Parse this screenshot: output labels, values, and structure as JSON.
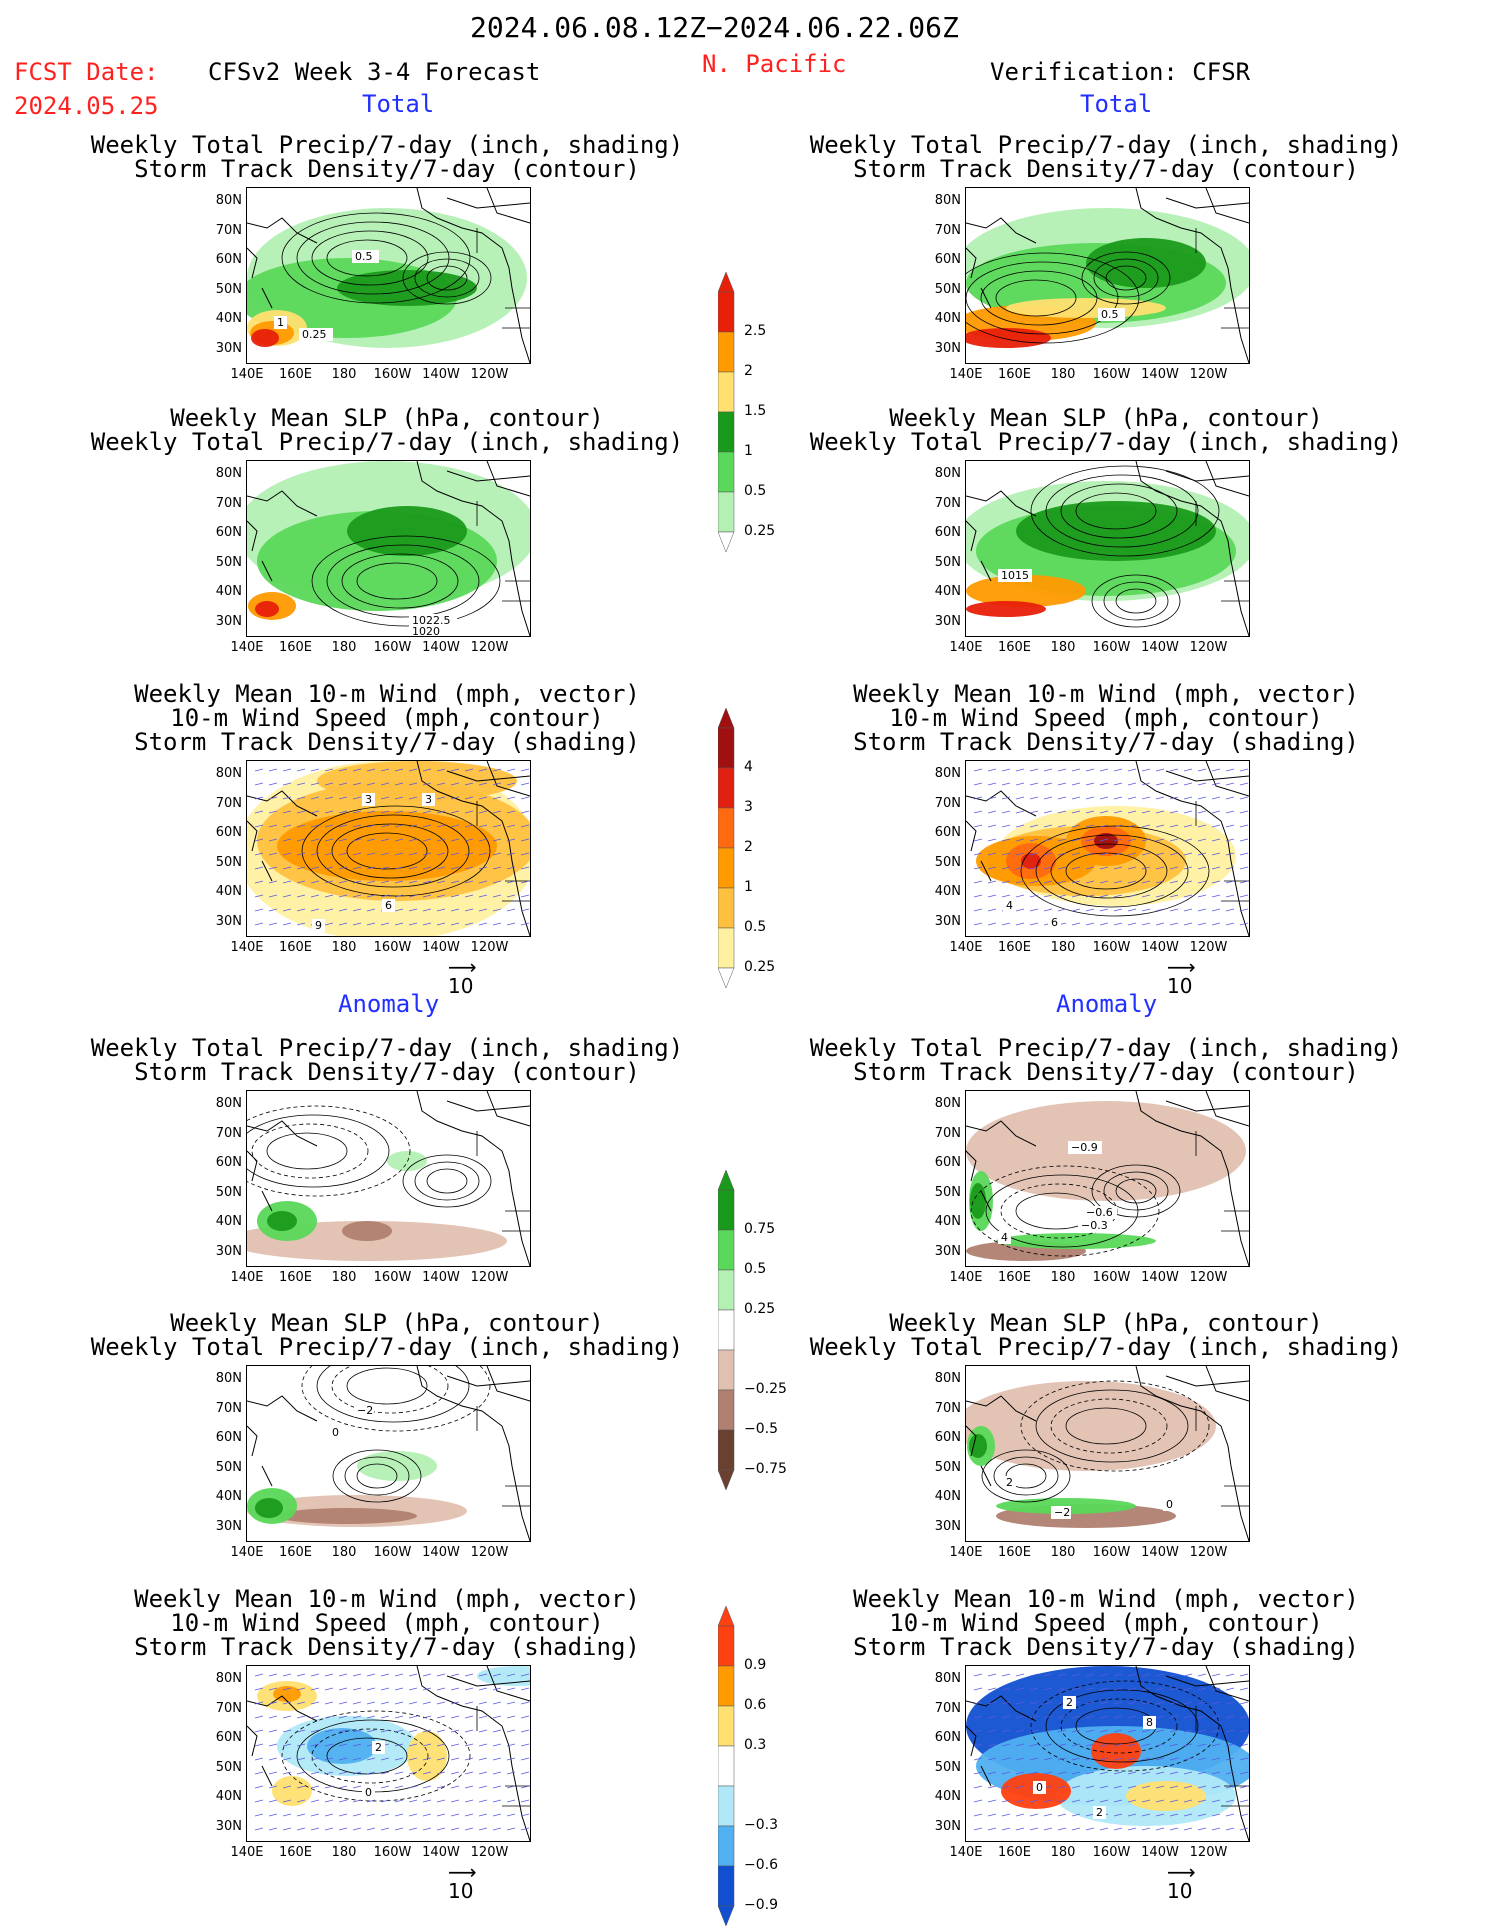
{
  "header": {
    "date_range": "2024.06.08.12Z−2024.06.22.06Z",
    "fcst_label": "FCST Date:",
    "fcst_date": "2024.05.25",
    "left_title": "CFSv2 Week 3-4 Forecast",
    "region": "N. Pacific",
    "right_title": "Verification: CFSR"
  },
  "sections": {
    "total": "Total",
    "anomaly": "Anomaly"
  },
  "panel_titles": {
    "precip_storm": [
      "Weekly Total Precip/7-day (inch, shading)",
      "Storm Track Density/7-day (contour)"
    ],
    "slp_precip": [
      "Weekly Mean SLP (hPa, contour)",
      "Weekly Total Precip/7-day (inch, shading)"
    ],
    "wind_storm": [
      "Weekly Mean 10-m Wind (mph, vector)",
      "10-m Wind Speed (mph, contour)",
      "Storm Track Density/7-day (shading)"
    ]
  },
  "axes": {
    "lat": [
      "80N",
      "70N",
      "60N",
      "50N",
      "40N",
      "30N"
    ],
    "lon": [
      "140E",
      "160E",
      "180",
      "160W",
      "140W",
      "120W"
    ]
  },
  "vector_ref": "10",
  "colorbars": {
    "precip_total": {
      "labels": [
        "2.5",
        "2",
        "1.5",
        "1",
        "0.5",
        "0.25"
      ],
      "colors": [
        "#e8200a",
        "#ff9a00",
        "#ffe070",
        "#1a9a1a",
        "#5ad85a",
        "#b4f0b4"
      ]
    },
    "storm_total": {
      "labels": [
        "4",
        "3",
        "2",
        "1",
        "0.5",
        "0.25"
      ],
      "colors": [
        "#a01010",
        "#e02010",
        "#ff6a10",
        "#ff9a00",
        "#ffc040",
        "#fff0a0"
      ]
    },
    "precip_anom": {
      "labels": [
        "0.75",
        "0.5",
        "0.25",
        "−0.25",
        "−0.5",
        "−0.75"
      ],
      "colors": [
        "#1a9a1a",
        "#5ad85a",
        "#b4f0b4",
        "#ffffff",
        "#e0c0b0",
        "#b08070",
        "#6a4030"
      ]
    },
    "storm_anom": {
      "labels": [
        "0.9",
        "0.6",
        "0.3",
        "−0.3",
        "−0.6",
        "−0.9"
      ],
      "colors": [
        "#ff4010",
        "#ff9a00",
        "#ffe070",
        "#ffffff",
        "#b0e8f8",
        "#50b0f0",
        "#1050d0"
      ]
    }
  },
  "map_labels": {
    "fc_precip_storm": [
      "0.5",
      "1",
      "0.25"
    ],
    "vf_precip_storm": [
      "0.5"
    ],
    "fc_slp": [
      "1022.5",
      "1020"
    ],
    "vf_slp": [
      "1015"
    ],
    "fc_wind": [
      "3",
      "3",
      "6",
      "9"
    ],
    "vf_wind": [
      "4",
      "6"
    ],
    "vf_anom_precip": [
      "−0.9",
      "−0.6",
      "−0.3",
      "4"
    ],
    "fc_anom_slp": [
      "−2",
      "0"
    ],
    "vf_anom_slp": [
      "2",
      "−2",
      "0"
    ],
    "fc_anom_wind": [
      "2",
      "0"
    ],
    "vf_anom_wind": [
      "2",
      "0",
      "2",
      "8"
    ]
  }
}
